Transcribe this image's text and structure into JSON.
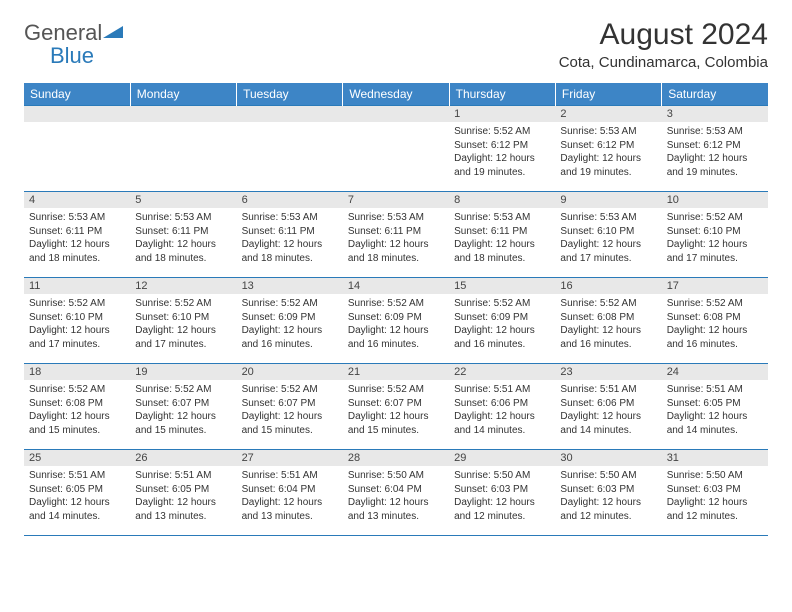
{
  "logo": {
    "word1": "General",
    "word2": "Blue"
  },
  "title": "August 2024",
  "location": "Cota, Cundinamarca, Colombia",
  "colors": {
    "header_bg": "#3d85c6",
    "border": "#2a7ab9",
    "daynum_bg": "#e8e8e8"
  },
  "weekdays": [
    "Sunday",
    "Monday",
    "Tuesday",
    "Wednesday",
    "Thursday",
    "Friday",
    "Saturday"
  ],
  "weeks": [
    [
      null,
      null,
      null,
      null,
      {
        "n": "1",
        "sr": "5:52 AM",
        "ss": "6:12 PM",
        "dl": "12 hours and 19 minutes."
      },
      {
        "n": "2",
        "sr": "5:53 AM",
        "ss": "6:12 PM",
        "dl": "12 hours and 19 minutes."
      },
      {
        "n": "3",
        "sr": "5:53 AM",
        "ss": "6:12 PM",
        "dl": "12 hours and 19 minutes."
      }
    ],
    [
      {
        "n": "4",
        "sr": "5:53 AM",
        "ss": "6:11 PM",
        "dl": "12 hours and 18 minutes."
      },
      {
        "n": "5",
        "sr": "5:53 AM",
        "ss": "6:11 PM",
        "dl": "12 hours and 18 minutes."
      },
      {
        "n": "6",
        "sr": "5:53 AM",
        "ss": "6:11 PM",
        "dl": "12 hours and 18 minutes."
      },
      {
        "n": "7",
        "sr": "5:53 AM",
        "ss": "6:11 PM",
        "dl": "12 hours and 18 minutes."
      },
      {
        "n": "8",
        "sr": "5:53 AM",
        "ss": "6:11 PM",
        "dl": "12 hours and 18 minutes."
      },
      {
        "n": "9",
        "sr": "5:53 AM",
        "ss": "6:10 PM",
        "dl": "12 hours and 17 minutes."
      },
      {
        "n": "10",
        "sr": "5:52 AM",
        "ss": "6:10 PM",
        "dl": "12 hours and 17 minutes."
      }
    ],
    [
      {
        "n": "11",
        "sr": "5:52 AM",
        "ss": "6:10 PM",
        "dl": "12 hours and 17 minutes."
      },
      {
        "n": "12",
        "sr": "5:52 AM",
        "ss": "6:10 PM",
        "dl": "12 hours and 17 minutes."
      },
      {
        "n": "13",
        "sr": "5:52 AM",
        "ss": "6:09 PM",
        "dl": "12 hours and 16 minutes."
      },
      {
        "n": "14",
        "sr": "5:52 AM",
        "ss": "6:09 PM",
        "dl": "12 hours and 16 minutes."
      },
      {
        "n": "15",
        "sr": "5:52 AM",
        "ss": "6:09 PM",
        "dl": "12 hours and 16 minutes."
      },
      {
        "n": "16",
        "sr": "5:52 AM",
        "ss": "6:08 PM",
        "dl": "12 hours and 16 minutes."
      },
      {
        "n": "17",
        "sr": "5:52 AM",
        "ss": "6:08 PM",
        "dl": "12 hours and 16 minutes."
      }
    ],
    [
      {
        "n": "18",
        "sr": "5:52 AM",
        "ss": "6:08 PM",
        "dl": "12 hours and 15 minutes."
      },
      {
        "n": "19",
        "sr": "5:52 AM",
        "ss": "6:07 PM",
        "dl": "12 hours and 15 minutes."
      },
      {
        "n": "20",
        "sr": "5:52 AM",
        "ss": "6:07 PM",
        "dl": "12 hours and 15 minutes."
      },
      {
        "n": "21",
        "sr": "5:52 AM",
        "ss": "6:07 PM",
        "dl": "12 hours and 15 minutes."
      },
      {
        "n": "22",
        "sr": "5:51 AM",
        "ss": "6:06 PM",
        "dl": "12 hours and 14 minutes."
      },
      {
        "n": "23",
        "sr": "5:51 AM",
        "ss": "6:06 PM",
        "dl": "12 hours and 14 minutes."
      },
      {
        "n": "24",
        "sr": "5:51 AM",
        "ss": "6:05 PM",
        "dl": "12 hours and 14 minutes."
      }
    ],
    [
      {
        "n": "25",
        "sr": "5:51 AM",
        "ss": "6:05 PM",
        "dl": "12 hours and 14 minutes."
      },
      {
        "n": "26",
        "sr": "5:51 AM",
        "ss": "6:05 PM",
        "dl": "12 hours and 13 minutes."
      },
      {
        "n": "27",
        "sr": "5:51 AM",
        "ss": "6:04 PM",
        "dl": "12 hours and 13 minutes."
      },
      {
        "n": "28",
        "sr": "5:50 AM",
        "ss": "6:04 PM",
        "dl": "12 hours and 13 minutes."
      },
      {
        "n": "29",
        "sr": "5:50 AM",
        "ss": "6:03 PM",
        "dl": "12 hours and 12 minutes."
      },
      {
        "n": "30",
        "sr": "5:50 AM",
        "ss": "6:03 PM",
        "dl": "12 hours and 12 minutes."
      },
      {
        "n": "31",
        "sr": "5:50 AM",
        "ss": "6:03 PM",
        "dl": "12 hours and 12 minutes."
      }
    ]
  ],
  "labels": {
    "sunrise": "Sunrise:",
    "sunset": "Sunset:",
    "daylight": "Daylight:"
  }
}
